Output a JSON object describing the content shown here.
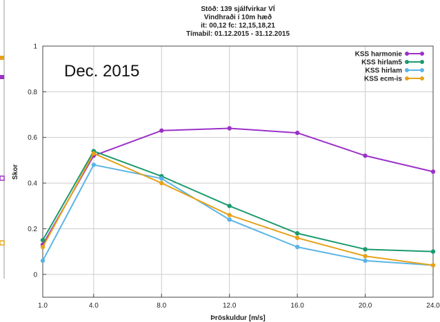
{
  "chart_data": {
    "type": "line",
    "title_lines": [
      "Stöð: 139 sjálfvirkar VÍ",
      "Vindhraði í 10m hæð",
      "it: 00,12 fc: 12,15,18,21",
      "Tímabil: 01.12.2015 - 31.12.2015"
    ],
    "annotation": "Dec. 2015",
    "xlabel": "Þröskuldur [m/s]",
    "ylabel": "Skor",
    "x_ticks": [
      "1.0",
      "4.0",
      "8.0",
      "12.0",
      "16.0",
      "20.0",
      "24.0"
    ],
    "y_ticks": [
      "0",
      "0.2",
      "0.4",
      "0.6",
      "0.8",
      "1"
    ],
    "ylim": [
      -0.1,
      1.0
    ],
    "grid": true,
    "legend_position": "top-right",
    "series": [
      {
        "name": "KSS harmonie",
        "color": "#9b30c8",
        "values": [
          0.13,
          0.52,
          0.63,
          0.64,
          0.62,
          0.52,
          0.45
        ]
      },
      {
        "name": "KSS hirlam5",
        "color": "#1a9a6c",
        "values": [
          0.15,
          0.54,
          0.43,
          0.3,
          0.18,
          0.11,
          0.1
        ]
      },
      {
        "name": "KSS hirlam",
        "color": "#5ab4e6",
        "values": [
          0.06,
          0.48,
          0.42,
          0.24,
          0.12,
          0.06,
          0.04
        ]
      },
      {
        "name": "KSS ecm-is",
        "color": "#e6a21a",
        "values": [
          0.12,
          0.53,
          0.4,
          0.26,
          0.16,
          0.08,
          0.04
        ]
      }
    ]
  }
}
